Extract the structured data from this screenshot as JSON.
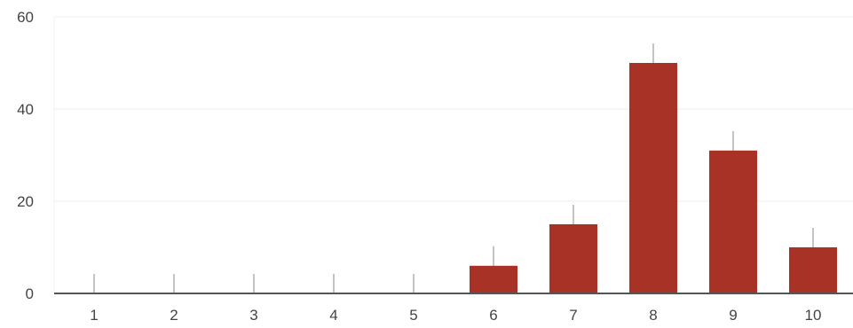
{
  "chart_data": {
    "type": "bar",
    "categories": [
      "1",
      "2",
      "3",
      "4",
      "5",
      "6",
      "7",
      "8",
      "9",
      "10"
    ],
    "values": [
      0,
      0,
      0,
      0,
      0,
      6,
      15,
      50,
      31,
      10
    ],
    "ylim": [
      0,
      60
    ],
    "yticks": [
      "0",
      "20",
      "40",
      "60"
    ],
    "grid": true,
    "legend": "none",
    "title": "",
    "xlabel": "",
    "ylabel": "",
    "colors": {
      "bar": "#a93226",
      "axis": "#555555",
      "grid": "#eeeeee",
      "text": "#444444"
    }
  }
}
